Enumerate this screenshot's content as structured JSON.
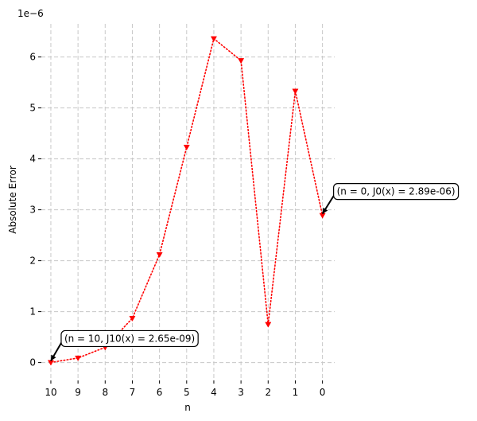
{
  "chart_data": {
    "type": "line",
    "title": "",
    "xlabel": "n",
    "ylabel": "Absolute Error",
    "y_offset_label": "1e−6",
    "x_inverted": true,
    "xlim": [
      10.35,
      -0.45
    ],
    "ylim": [
      -0.35,
      6.65
    ],
    "grid": true,
    "x_ticks": [
      10,
      9,
      8,
      7,
      6,
      5,
      4,
      3,
      2,
      1,
      0
    ],
    "y_ticks": [
      0,
      1,
      2,
      3,
      4,
      5,
      6
    ],
    "series": [
      {
        "color": "#ff0000",
        "line_style": "dotted",
        "marker": "triangle-down",
        "points": [
          {
            "x": 10,
            "y": 0.00265
          },
          {
            "x": 9,
            "y": 0.09
          },
          {
            "x": 8,
            "y": 0.3
          },
          {
            "x": 7,
            "y": 0.87
          },
          {
            "x": 6,
            "y": 2.12
          },
          {
            "x": 5,
            "y": 4.23
          },
          {
            "x": 4,
            "y": 6.36
          },
          {
            "x": 3,
            "y": 5.93
          },
          {
            "x": 2,
            "y": 0.75
          },
          {
            "x": 1,
            "y": 5.33
          },
          {
            "x": 0,
            "y": 2.89
          }
        ]
      }
    ],
    "annotations": [
      {
        "x": 10,
        "y": 0.00265,
        "text": "(n = 10, J10(x) = 2.65e-09)"
      },
      {
        "x": 0,
        "y": 2.89,
        "text": "(n = 0, J0(x) = 2.89e-06)"
      }
    ]
  }
}
